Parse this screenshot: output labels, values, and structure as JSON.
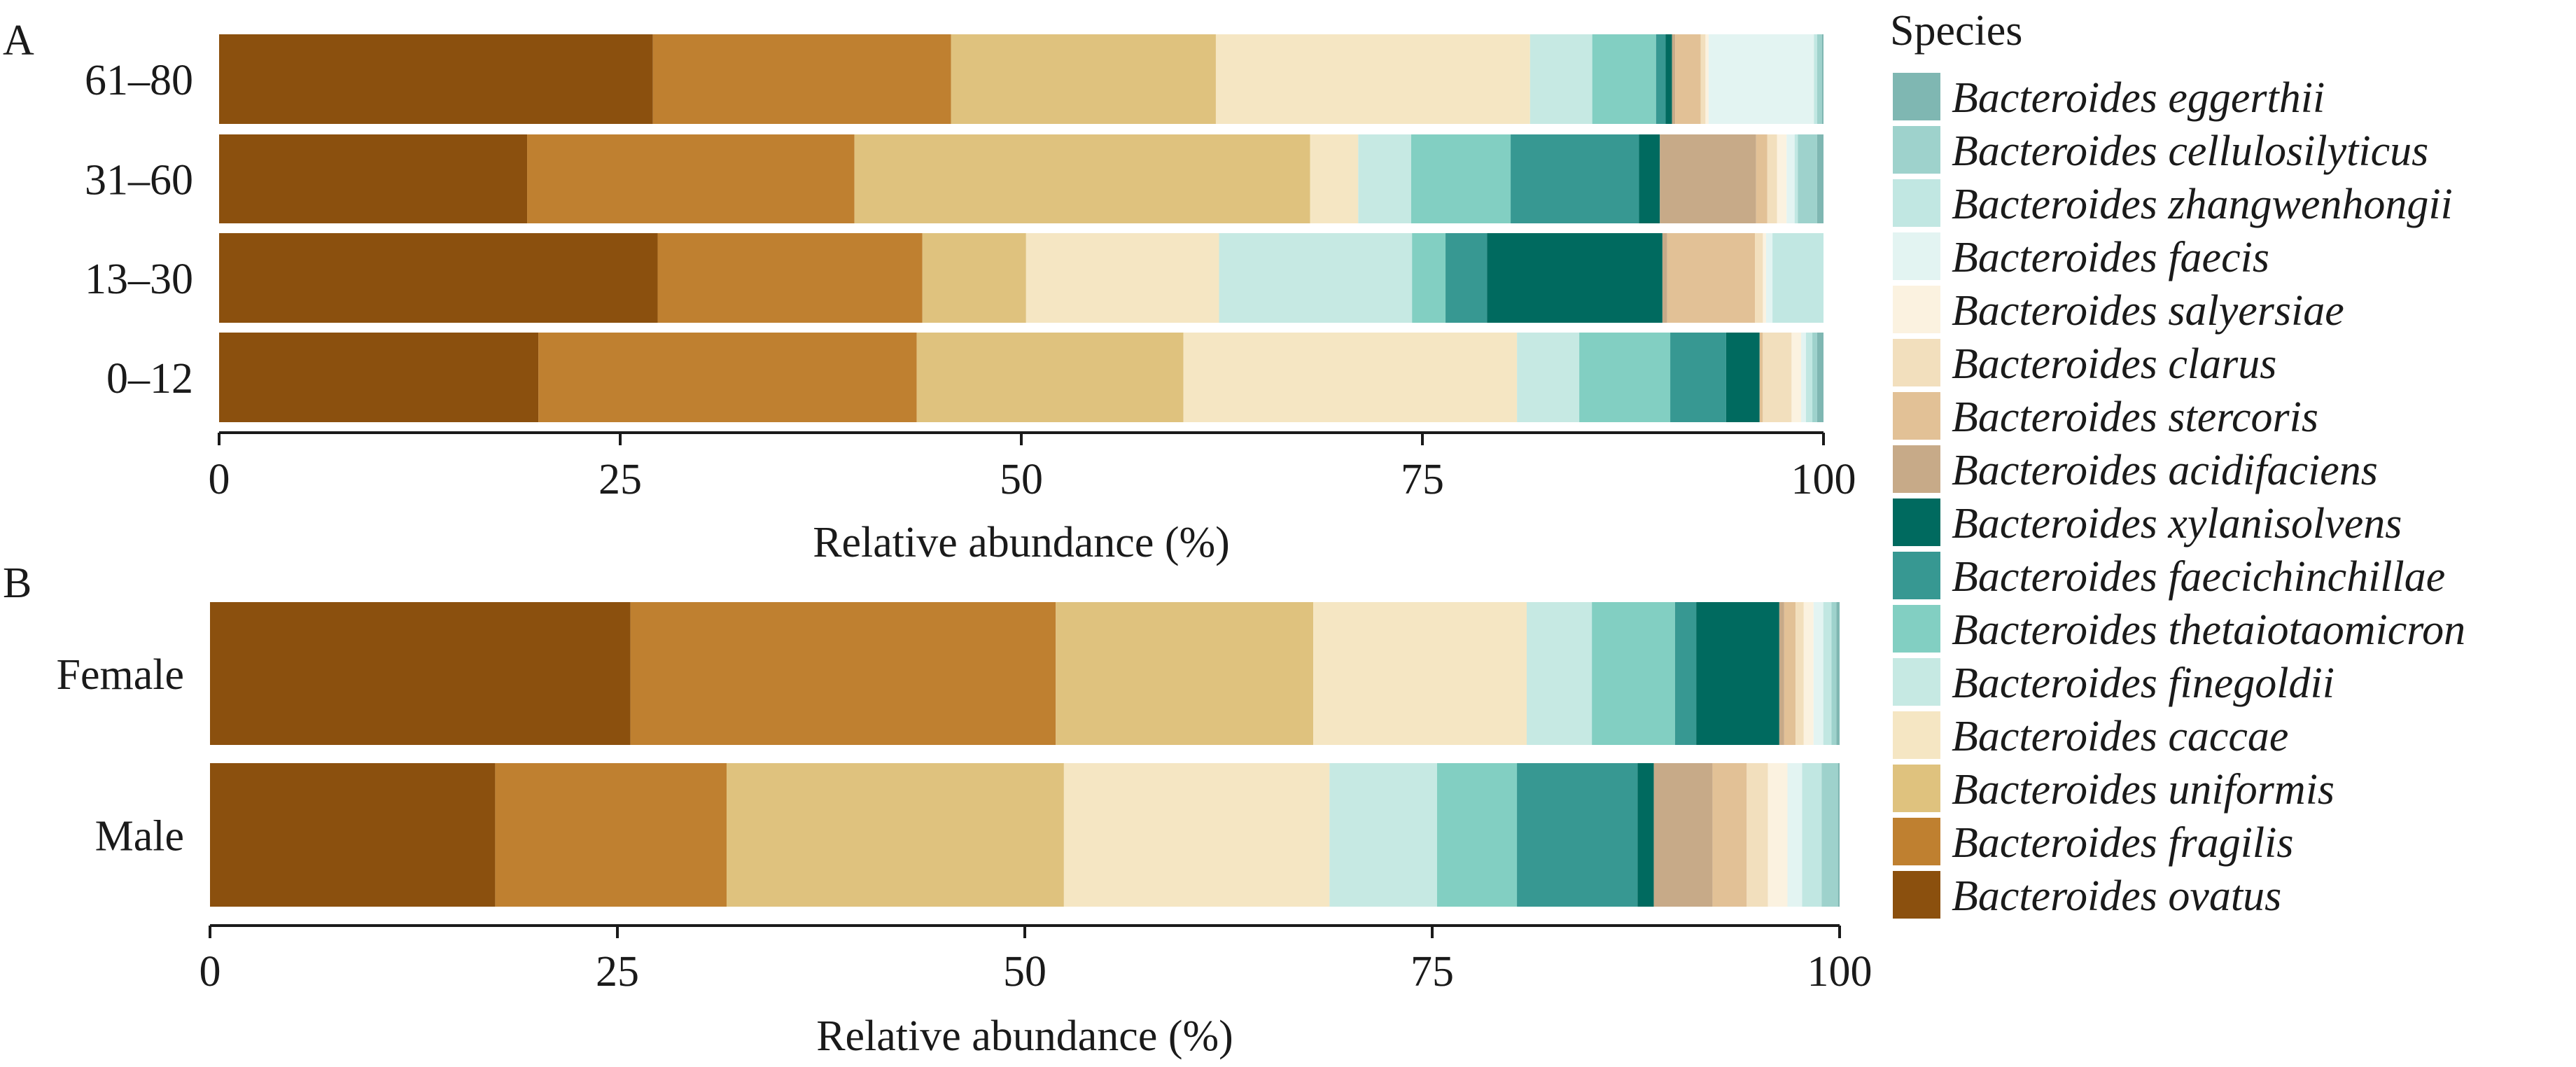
{
  "legend": {
    "title": "Species",
    "position": "right"
  },
  "species_colors": {
    "Bacteroides eggerthii": "#7fb7b2",
    "Bacteroides cellulosilyticus": "#9ed2cc",
    "Bacteroides zhangwenhongii": "#c1e7e2",
    "Bacteroides faecis": "#e3f4f2",
    "Bacteroides salyersiae": "#fbf2e0",
    "Bacteroides clarus": "#f2dfbd",
    "Bacteroides stercoris": "#e2c196",
    "Bacteroides acidifaciens": "#c7aa88",
    "Bacteroides xylanisolvens": "#006a5f",
    "Bacteroides faecichinchillae": "#379892",
    "Bacteroides thetaiotaomicron": "#82cfc2",
    "Bacteroides finegoldii": "#c6e9e3",
    "Bacteroides caccae": "#f5e6c3",
    "Bacteroides uniformis": "#dfc27e",
    "Bacteroides fragilis": "#bf8030",
    "Bacteroides ovatus": "#8b500e"
  },
  "chart_data": [
    {
      "panel": "A",
      "type": "bar",
      "orientation": "horizontal",
      "stacked": true,
      "xlabel": "Relative abundance (%)",
      "xlim": [
        0,
        100
      ],
      "xticks": [
        "0",
        "25",
        "50",
        "75",
        "100"
      ],
      "grid": false,
      "categories": [
        "61–80",
        "31–60",
        "13–30",
        "0–12"
      ],
      "series": [
        {
          "name": "Bacteroides ovatus",
          "values": [
            27.2,
            19.2,
            27.5,
            20.0
          ]
        },
        {
          "name": "Bacteroides fragilis",
          "values": [
            18.7,
            20.4,
            16.6,
            23.7
          ]
        },
        {
          "name": "Bacteroides uniformis",
          "values": [
            16.6,
            28.4,
            6.5,
            16.7
          ]
        },
        {
          "name": "Bacteroides caccae",
          "values": [
            19.7,
            3.0,
            12.1,
            20.9
          ]
        },
        {
          "name": "Bacteroides finegoldii",
          "values": [
            3.9,
            3.3,
            12.1,
            3.9
          ]
        },
        {
          "name": "Bacteroides thetaiotaomicron",
          "values": [
            4.0,
            6.2,
            2.1,
            5.7
          ]
        },
        {
          "name": "Bacteroides faecichinchillae",
          "values": [
            0.6,
            8.0,
            2.6,
            3.5
          ]
        },
        {
          "name": "Bacteroides xylanisolvens",
          "values": [
            0.4,
            1.3,
            11.0,
            2.1
          ]
        },
        {
          "name": "Bacteroides acidifaciens",
          "values": [
            0.2,
            6.0,
            0.3,
            0.0
          ]
        },
        {
          "name": "Bacteroides stercoris",
          "values": [
            1.6,
            0.7,
            5.5,
            0.2
          ]
        },
        {
          "name": "Bacteroides clarus",
          "values": [
            0.3,
            0.6,
            0.5,
            1.8
          ]
        },
        {
          "name": "Bacteroides salyersiae",
          "values": [
            0.2,
            0.6,
            0.2,
            0.6
          ]
        },
        {
          "name": "Bacteroides faecis",
          "values": [
            6.6,
            0.5,
            0.4,
            0.3
          ]
        },
        {
          "name": "Bacteroides zhangwenhongii",
          "values": [
            0.2,
            0.2,
            3.2,
            0.4
          ]
        },
        {
          "name": "Bacteroides cellulosilyticus",
          "values": [
            0.3,
            1.2,
            0.0,
            0.3
          ]
        },
        {
          "name": "Bacteroides eggerthii",
          "values": [
            0.1,
            0.4,
            0.0,
            0.4
          ]
        }
      ]
    },
    {
      "panel": "B",
      "type": "bar",
      "orientation": "horizontal",
      "stacked": true,
      "xlabel": "Relative abundance (%)",
      "xlim": [
        0,
        100
      ],
      "xticks": [
        "0",
        "25",
        "50",
        "75",
        "100"
      ],
      "grid": false,
      "categories": [
        "Female",
        "Male"
      ],
      "series": [
        {
          "name": "Bacteroides ovatus",
          "values": [
            25.8,
            17.5
          ]
        },
        {
          "name": "Bacteroides fragilis",
          "values": [
            26.1,
            14.2
          ]
        },
        {
          "name": "Bacteroides uniformis",
          "values": [
            15.8,
            20.7
          ]
        },
        {
          "name": "Bacteroides caccae",
          "values": [
            13.1,
            16.3
          ]
        },
        {
          "name": "Bacteroides finegoldii",
          "values": [
            4.0,
            6.6
          ]
        },
        {
          "name": "Bacteroides thetaiotaomicron",
          "values": [
            5.1,
            4.9
          ]
        },
        {
          "name": "Bacteroides faecichinchillae",
          "values": [
            1.3,
            7.4
          ]
        },
        {
          "name": "Bacteroides xylanisolvens",
          "values": [
            5.1,
            1.0
          ]
        },
        {
          "name": "Bacteroides acidifaciens",
          "values": [
            0.3,
            3.6
          ]
        },
        {
          "name": "Bacteroides stercoris",
          "values": [
            0.7,
            2.1
          ]
        },
        {
          "name": "Bacteroides clarus",
          "values": [
            0.5,
            1.3
          ]
        },
        {
          "name": "Bacteroides salyersiae",
          "values": [
            0.6,
            1.2
          ]
        },
        {
          "name": "Bacteroides faecis",
          "values": [
            0.6,
            0.9
          ]
        },
        {
          "name": "Bacteroides zhangwenhongii",
          "values": [
            0.5,
            1.2
          ]
        },
        {
          "name": "Bacteroides cellulosilyticus",
          "values": [
            0.3,
            1.0
          ]
        },
        {
          "name": "Bacteroides eggerthii",
          "values": [
            0.2,
            0.1
          ]
        }
      ]
    }
  ]
}
